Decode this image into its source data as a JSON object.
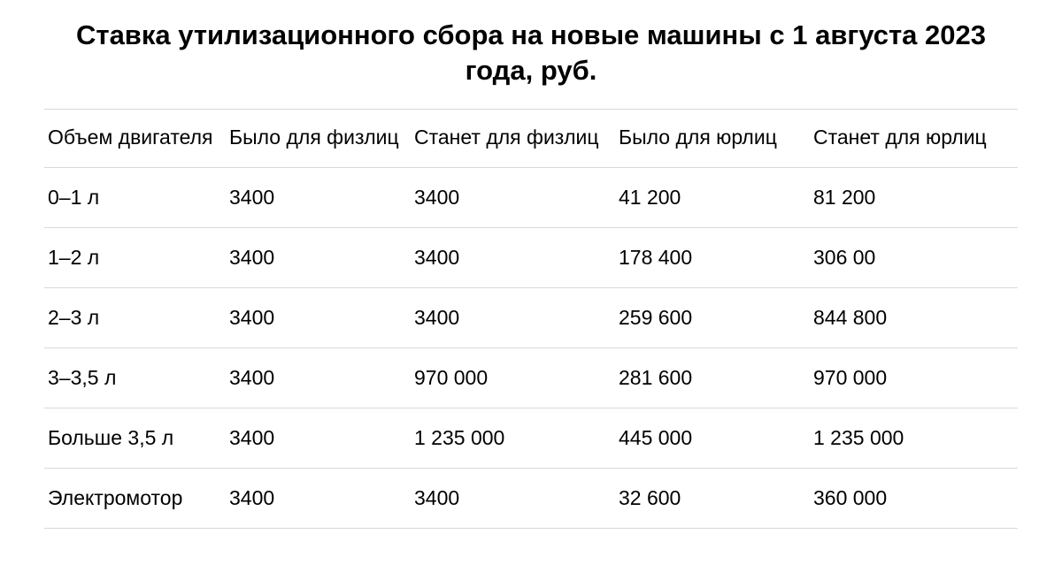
{
  "title": "Ставка утилизационного сбора на новые машины с 1 августа 2023 года, руб.",
  "table": {
    "columns": [
      "Объем двигателя",
      "Было для физлиц",
      "Станет для физлиц",
      "Было для юрлиц",
      "Станет для юрлиц"
    ],
    "rows": [
      [
        "0–1 л",
        "3400",
        "3400",
        "41 200",
        "81 200"
      ],
      [
        "1–2 л",
        "3400",
        "3400",
        "178 400",
        "306 00"
      ],
      [
        "2–3 л",
        "3400",
        "3400",
        "259 600",
        "844 800"
      ],
      [
        "3–3,5 л",
        "3400",
        "970 000",
        "281 600",
        "970 000"
      ],
      [
        "Больше 3,5 л",
        "3400",
        "1 235 000",
        "445 000",
        "1 235 000"
      ],
      [
        "Электромотор",
        "3400",
        "3400",
        "32 600",
        "360 000"
      ]
    ]
  }
}
